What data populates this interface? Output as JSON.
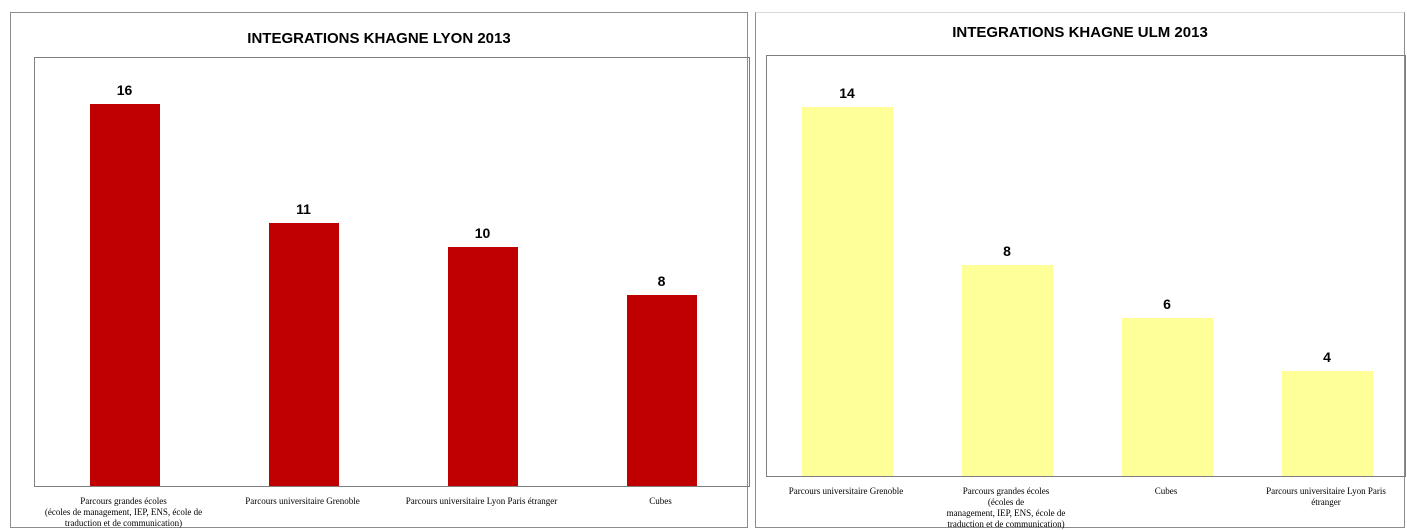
{
  "chart_data": [
    {
      "type": "bar",
      "title": "INTEGRATIONS KHAGNE LYON 2013",
      "categories": [
        "Parcours grandes écoles\n(écoles de management, IEP, ENS, école de\ntraduction et de communication)",
        "Parcours universitaire Grenoble",
        "Parcours universitaire Lyon Paris étranger",
        "Cubes"
      ],
      "values": [
        16,
        11,
        10,
        8
      ],
      "ylim": [
        0,
        18
      ],
      "grid": false,
      "bar_color": "#c00000",
      "xlabel": "",
      "ylabel": ""
    },
    {
      "type": "bar",
      "title": "INTEGRATIONS KHAGNE ULM 2013",
      "categories": [
        "Parcours universitaire Grenoble",
        "Parcours grandes écoles\n(écoles de\nmanagement, IEP, ENS, école de\ntraduction et de communication)",
        "Cubes",
        "Parcours universitaire Lyon Paris\nétranger"
      ],
      "values": [
        14,
        8,
        6,
        4
      ],
      "ylim": [
        0,
        16
      ],
      "grid": false,
      "bar_color": "#ffff99",
      "xlabel": "",
      "ylabel": ""
    }
  ]
}
